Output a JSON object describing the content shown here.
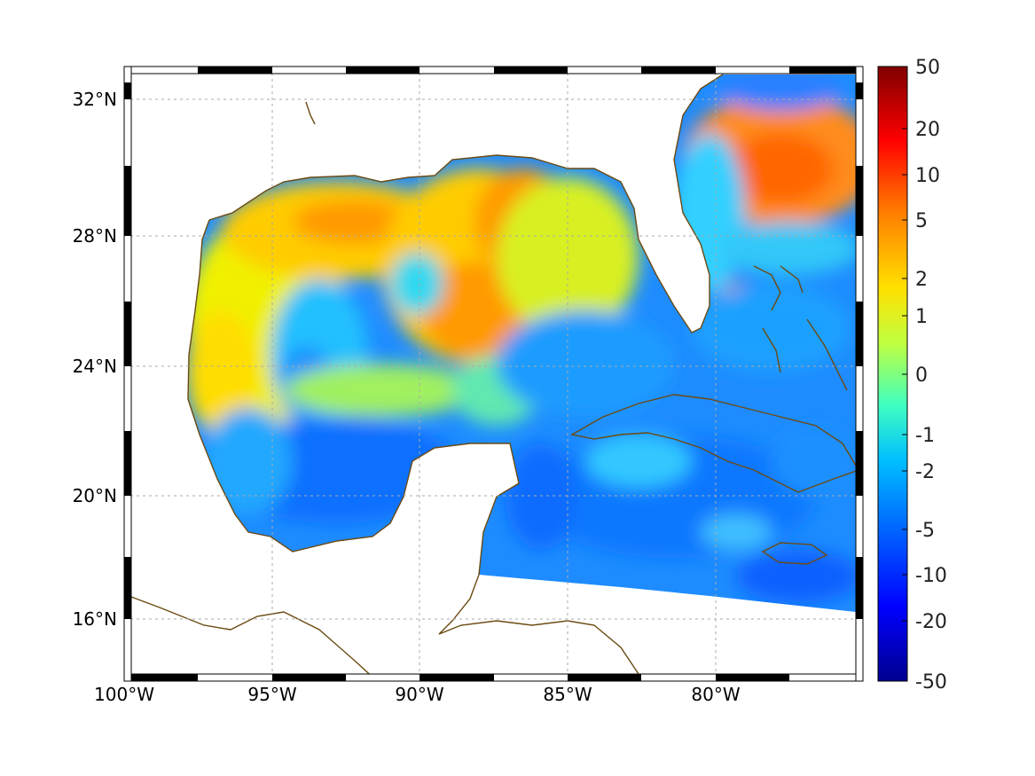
{
  "figure": {
    "lon_labels": [
      "100°W",
      "95°W",
      "90°W",
      "85°W",
      "80°W"
    ],
    "lat_labels": [
      "32°N",
      "28°N",
      "24°N",
      "20°N",
      "16°N"
    ],
    "colorbar_labels": [
      "50",
      "20",
      "10",
      "5",
      "2",
      "1",
      "0",
      "-1",
      "-2",
      "-5",
      "-10",
      "-20",
      "-50"
    ]
  },
  "map": {
    "type": "geographic color map",
    "region": "Gulf of Mexico and western Caribbean",
    "lon_range": [
      -100,
      -75
    ],
    "lat_range": [
      14.8,
      32.9
    ],
    "lon_ticks": [
      -100,
      -95,
      -90,
      -85,
      -80
    ],
    "lat_ticks": [
      32,
      28,
      24,
      20,
      16
    ],
    "grid": true,
    "colormap": "jet",
    "colorbar_ticks": [
      50,
      20,
      10,
      5,
      2,
      1,
      0,
      -1,
      -2,
      -5,
      -10,
      -20,
      -50
    ],
    "colorbar_range": [
      -50,
      50
    ],
    "colorbar_position": "right",
    "coastline_color": "#6b4a12",
    "border_colors": [
      "#000000",
      "#ffffff"
    ]
  }
}
